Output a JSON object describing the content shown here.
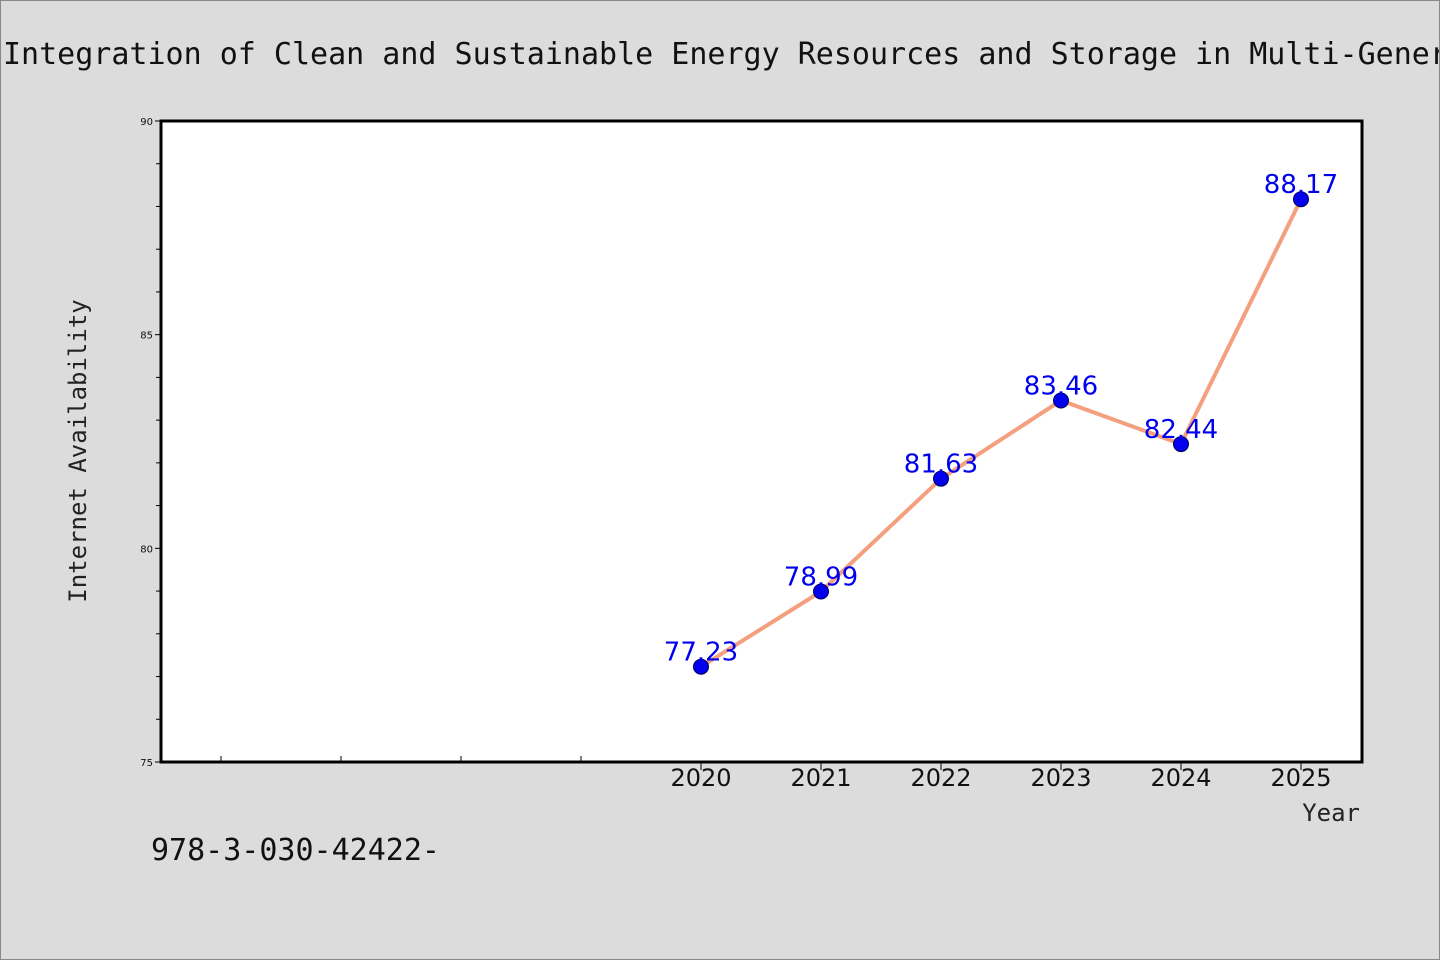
{
  "chart_data": {
    "type": "line",
    "title": "Integration of Clean and Sustainable Energy Resources and Storage in Multi-Gener",
    "xlabel": "Year",
    "ylabel": "Internet Availability",
    "x": [
      "2020",
      "2021",
      "2022",
      "2023",
      "2024",
      "2025"
    ],
    "series": [
      {
        "values": [
          77.23,
          78.99,
          81.63,
          83.46,
          82.44,
          88.17
        ],
        "labels": [
          "77.23",
          "78.99",
          "81.63",
          "83.46",
          "82.44",
          "88.17"
        ],
        "line_color": "#f4a07f",
        "marker_color": "#0000ee"
      }
    ],
    "ylim": [
      75,
      90
    ],
    "yticks": [
      "75",
      "80",
      "85",
      "90"
    ],
    "x_range_start": 2015.5,
    "grid": false,
    "legend": "none",
    "data_label_color": "#0000ee"
  },
  "footer": {
    "text": "978-3-030-42422-"
  }
}
